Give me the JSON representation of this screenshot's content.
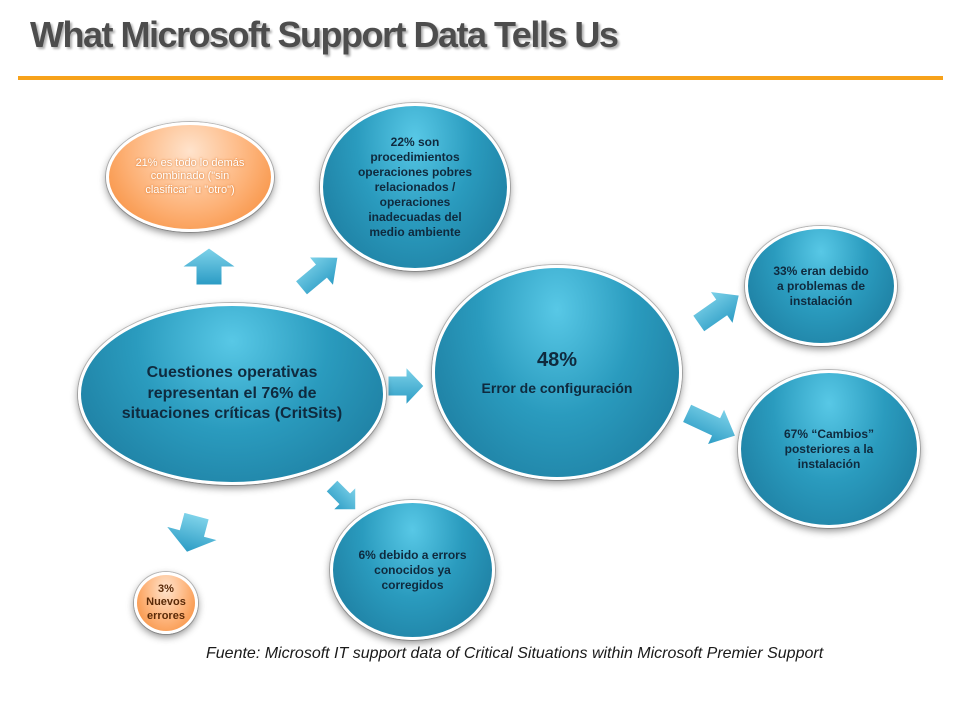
{
  "title": "What Microsoft Support Data Tells Us",
  "nodes": {
    "main": "Cuestiones operativas representan el 76% de situaciones críticas (CritSits)",
    "other": "21% es todo lo demás combinado (\"sin clasificar\" u \"otro\")",
    "procedures": "22% son procedimientos operaciones pobres relacionados / operaciones inadecuadas del medio ambiente",
    "config_pct": "48%",
    "config_label": "Error de configuración",
    "install": "33% eran debido a problemas de instalación",
    "changes": "67% “Cambios” posteriores a la instalación",
    "known": "6% debido a errors conocidos ya corregidos",
    "new_errors": "3% Nuevos errores"
  },
  "footer": "Fuente: Microsoft IT support data of Critical Situations within Microsoft Premier Support",
  "colors": {
    "title": "#4d4d4d",
    "rule": "#f7a21a",
    "blue": "#2a9bbe",
    "orange": "#fdb176",
    "arrow": "#3fb0d2"
  }
}
